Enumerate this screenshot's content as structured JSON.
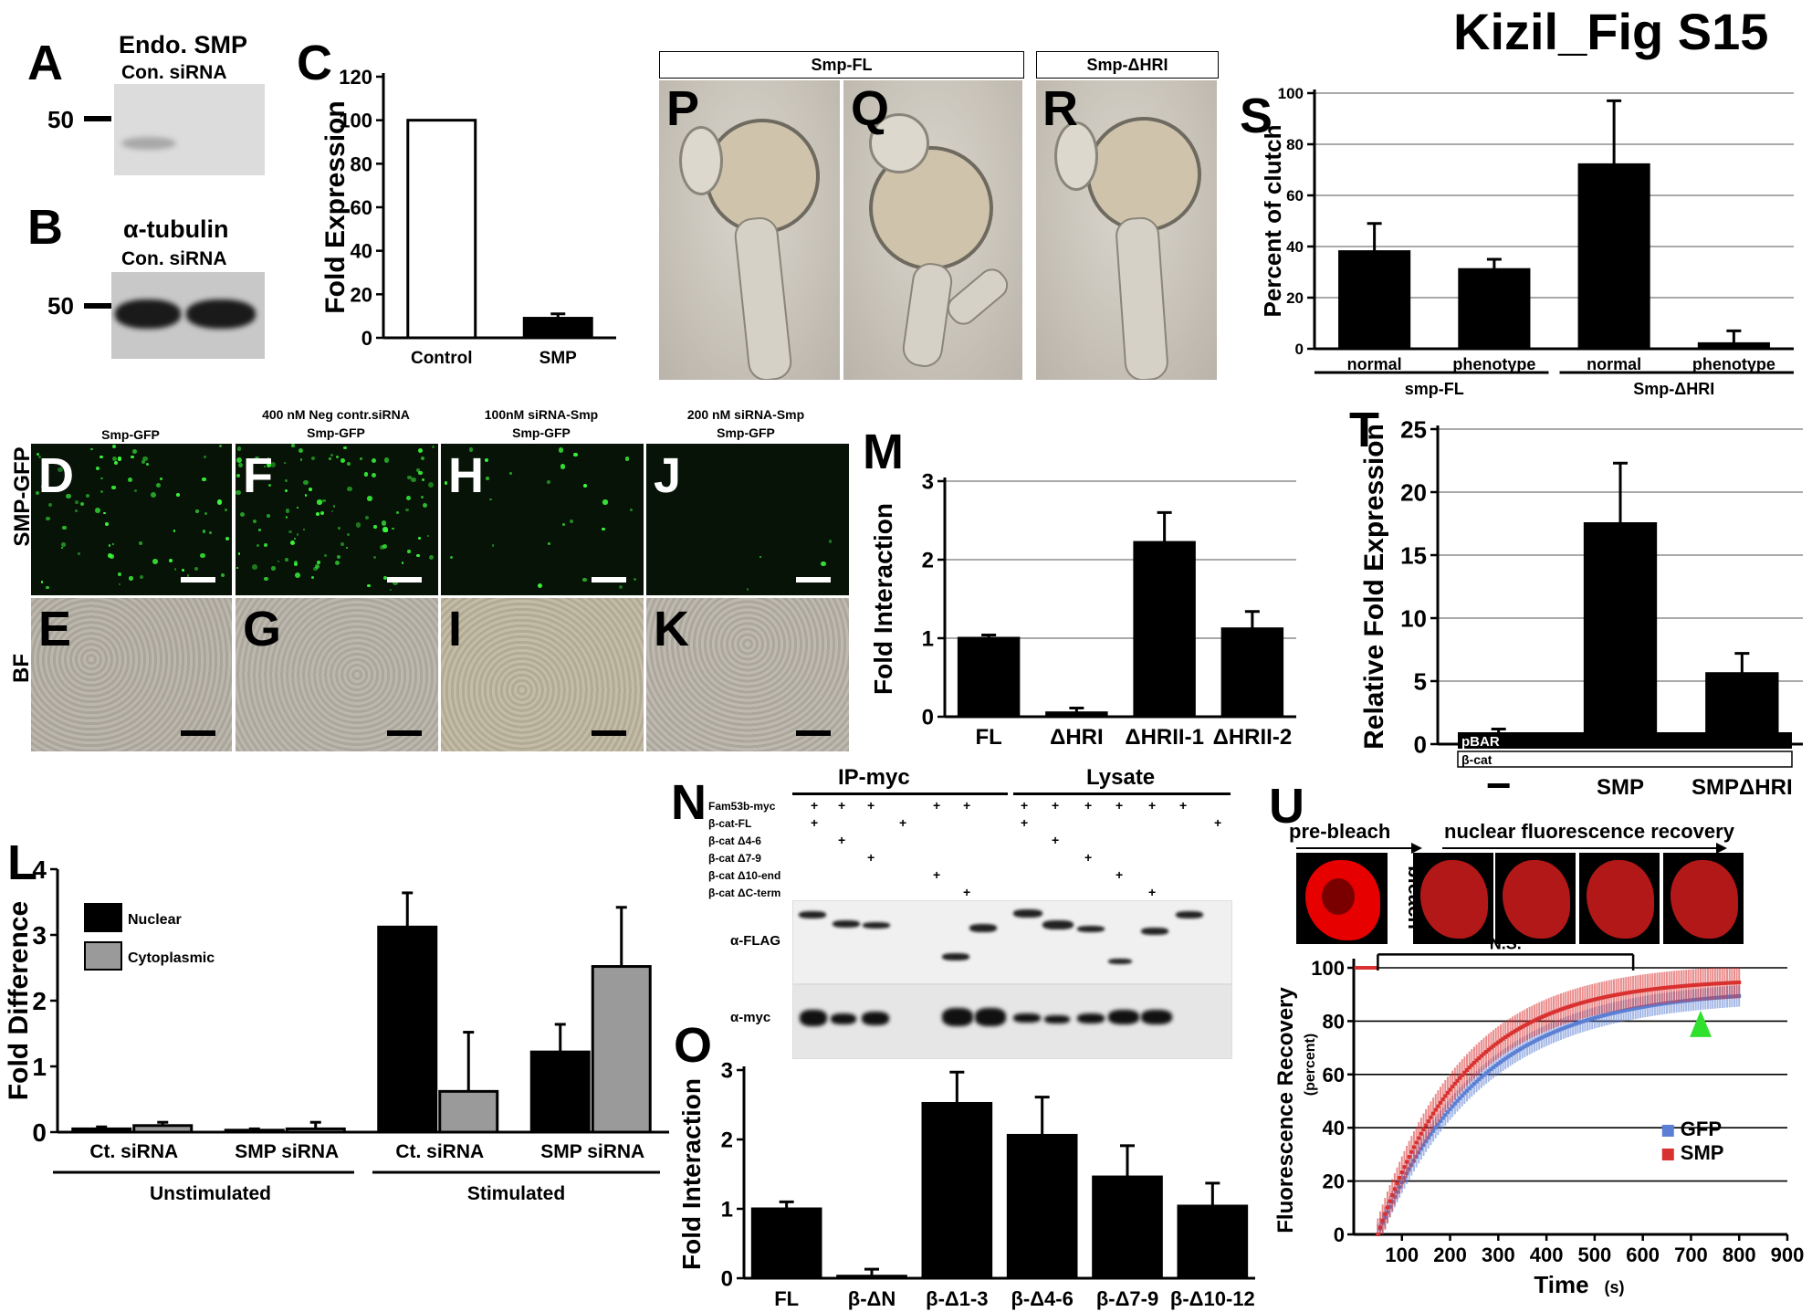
{
  "figure_title": "Kizil_Fig S15",
  "panels": {
    "A": {
      "label": "A",
      "title": "Endo. SMP",
      "subtitle": "Con. siRNA",
      "marker": "50"
    },
    "B": {
      "label": "B",
      "title": "α-tubulin",
      "subtitle": "Con. siRNA",
      "marker": "50"
    },
    "C": {
      "label": "C"
    },
    "D": {
      "label": "D",
      "header": "Smp-GFP"
    },
    "E": {
      "label": "E"
    },
    "F": {
      "label": "F",
      "header1": "400 nM Neg contr.siRNA",
      "header2": "Smp-GFP"
    },
    "G": {
      "label": "G"
    },
    "H": {
      "label": "H",
      "header1": "100nM siRNA-Smp",
      "header2": "Smp-GFP"
    },
    "I": {
      "label": "I"
    },
    "J": {
      "label": "J",
      "header1": "200 nM siRNA-Smp",
      "header2": "Smp-GFP"
    },
    "K": {
      "label": "K"
    },
    "L": {
      "label": "L"
    },
    "M": {
      "label": "M"
    },
    "N": {
      "label": "N"
    },
    "O": {
      "label": "O"
    },
    "P": {
      "label": "P"
    },
    "Q": {
      "label": "Q"
    },
    "R": {
      "label": "R"
    },
    "S": {
      "label": "S"
    },
    "T": {
      "label": "T"
    },
    "U": {
      "label": "U"
    }
  },
  "row_labels": {
    "gfp": "SMP-GFP",
    "bf": "BF"
  },
  "embryo_headers": {
    "fl": "Smp-FL",
    "dhri": "Smp-ΔHRI"
  },
  "blot_N": {
    "group1": "IP-myc",
    "group2": "Lysate",
    "rows": [
      "Fam53b-myc",
      "β-cat-FL",
      "β-cat Δ4-6",
      "β-cat Δ7-9",
      "β-cat Δ10-end",
      "β-cat ΔC-term"
    ],
    "plus": "+",
    "antibody1": "α-FLAG",
    "antibody2": "α-myc"
  },
  "U_labels": {
    "prebleach": "pre-bleach",
    "bleach": "bleach",
    "recovery": "nuclear fluorescence recovery",
    "ns": "N.S."
  },
  "chart_data": [
    {
      "id": "C",
      "type": "bar",
      "categories": [
        "Control",
        "SMP"
      ],
      "values": [
        100,
        9
      ],
      "errors": [
        0,
        2
      ],
      "fills": [
        "#ffffff",
        "#000000"
      ],
      "ylabel": "Fold Expression",
      "ylim": [
        0,
        120
      ],
      "yticks": [
        0,
        20,
        40,
        60,
        80,
        100,
        120
      ]
    },
    {
      "id": "S",
      "type": "bar",
      "categories": [
        "normal",
        "phenotype",
        "normal",
        "phenotype"
      ],
      "groups": [
        "smp-FL",
        "Smp-ΔHRI"
      ],
      "values": [
        38,
        31,
        72,
        2
      ],
      "errors": [
        11,
        4,
        25,
        5
      ],
      "ylabel": "Percent of clutch",
      "ylim": [
        0,
        100
      ],
      "yticks": [
        0,
        20,
        40,
        60,
        80,
        100
      ],
      "grid": true
    },
    {
      "id": "M",
      "type": "bar",
      "categories": [
        "FL",
        "ΔHRI",
        "ΔHRII-1",
        "ΔHRII-2"
      ],
      "values": [
        1.0,
        0.05,
        2.22,
        1.12
      ],
      "errors": [
        0.04,
        0.06,
        0.38,
        0.22
      ],
      "ylabel": "Fold Interaction",
      "ylim": [
        0,
        3
      ],
      "yticks": [
        0,
        1,
        2,
        3
      ],
      "grid": true
    },
    {
      "id": "T",
      "type": "bar",
      "categories": [
        "—",
        "SMP",
        "SMPΔHRI"
      ],
      "values": [
        0.8,
        17.5,
        5.6
      ],
      "errors": [
        0.4,
        4.8,
        1.6
      ],
      "ylabel": "Relative Fold Expression",
      "ylim": [
        0,
        25
      ],
      "yticks": [
        0,
        5,
        10,
        15,
        20,
        25
      ],
      "grid": true,
      "rows": [
        "pBAR",
        "β-cat"
      ]
    },
    {
      "id": "L",
      "type": "bar",
      "categories": [
        "Ct. siRNA",
        "SMP siRNA",
        "Ct. siRNA",
        "SMP siRNA"
      ],
      "groups": [
        "Unstimulated",
        "Stimulated"
      ],
      "series": [
        {
          "name": "Nuclear",
          "values": [
            0.05,
            0.03,
            3.12,
            1.22
          ],
          "errors": [
            0.03,
            0.02,
            0.52,
            0.42
          ]
        },
        {
          "name": "Cytoplasmic",
          "values": [
            0.1,
            0.05,
            0.62,
            2.52
          ],
          "errors": [
            0.05,
            0.1,
            0.9,
            0.9
          ]
        }
      ],
      "colors": [
        "#000000",
        "#9a9a9a"
      ],
      "ylabel": "Fold Difference",
      "ylim": [
        0,
        4
      ],
      "yticks": [
        0,
        1,
        2,
        3,
        4
      ]
    },
    {
      "id": "O",
      "type": "bar",
      "categories": [
        "FL",
        "β-ΔN",
        "β-Δ1-3",
        "β-Δ4-6",
        "β-Δ7-9",
        "β-Δ10-12"
      ],
      "values": [
        1.0,
        0.03,
        2.52,
        2.06,
        1.46,
        1.04
      ],
      "errors": [
        0.1,
        0.1,
        0.45,
        0.55,
        0.45,
        0.33
      ],
      "ylabel": "Fold Interaction",
      "ylim": [
        0,
        3
      ],
      "yticks": [
        0,
        1,
        2,
        3
      ]
    },
    {
      "id": "U",
      "type": "scatter",
      "xlabel": "Time",
      "xunit": "(s)",
      "ylabel": "Fluorescence Recovery",
      "yunit": "(percent)",
      "xlim": [
        0,
        900
      ],
      "ylim": [
        0,
        100
      ],
      "xticks": [
        100,
        200,
        300,
        400,
        500,
        600,
        700,
        800,
        900
      ],
      "yticks": [
        0,
        20,
        40,
        60,
        80,
        100
      ],
      "grid": true,
      "legend": "bottom-right",
      "series": [
        {
          "name": "GFP",
          "color": "#5b7fd4",
          "plateau": 92,
          "tau": 210,
          "err": 4
        },
        {
          "name": "SMP",
          "color": "#d93030",
          "plateau": 96,
          "tau": 180,
          "err": 6
        }
      ]
    }
  ]
}
